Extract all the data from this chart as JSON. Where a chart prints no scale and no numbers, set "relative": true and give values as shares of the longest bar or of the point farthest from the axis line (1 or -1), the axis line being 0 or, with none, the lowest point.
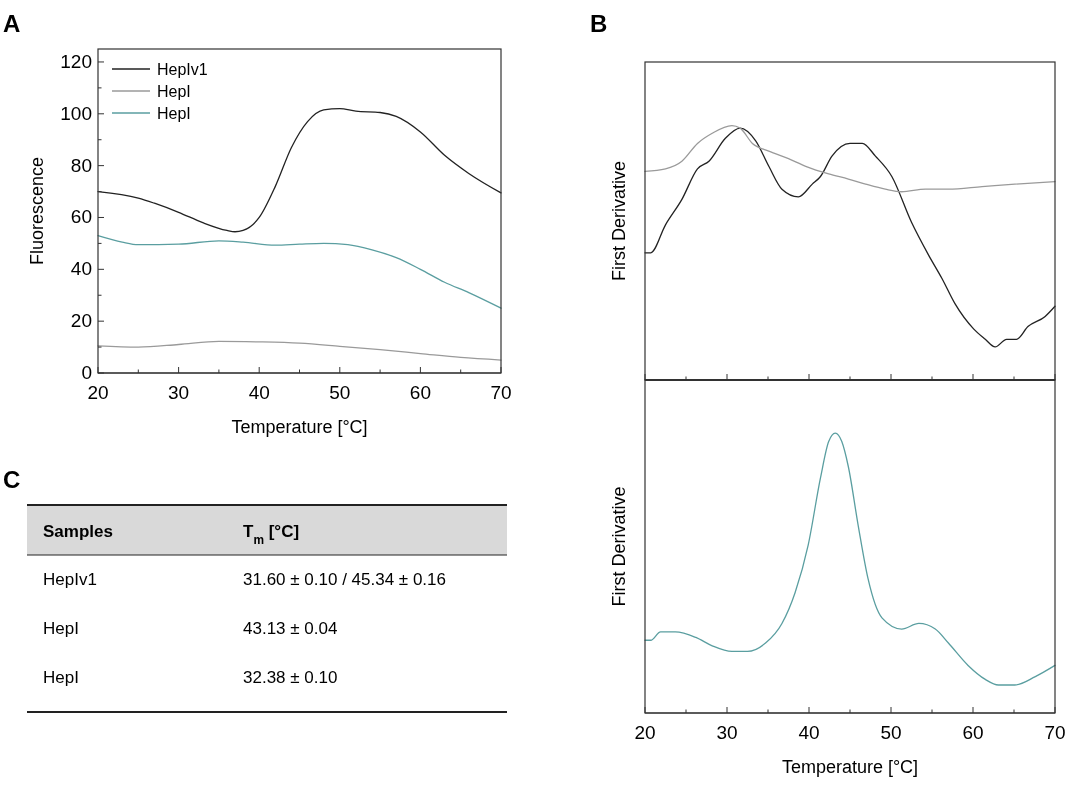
{
  "chart_data": [
    {
      "type": "line",
      "title": "A",
      "xlabel": "Temperature [°C]",
      "ylabel": "Fluorescence",
      "xlim": [
        20,
        70
      ],
      "ylim": [
        0,
        125
      ],
      "xticks": [
        20,
        30,
        40,
        50,
        60,
        70
      ],
      "yticks": [
        0,
        20,
        40,
        60,
        80,
        100,
        120
      ],
      "legend": "top left",
      "series": [
        {
          "name": "HepIv1",
          "color": "#222222",
          "x": [
            20,
            25,
            27,
            30,
            33,
            36,
            37,
            38,
            40,
            42,
            44,
            46,
            48,
            50,
            52,
            55,
            57,
            60,
            63,
            66,
            70
          ],
          "values": [
            70,
            67.5,
            65.5,
            62,
            58,
            55,
            54.5,
            55,
            60,
            72,
            87,
            97,
            101.5,
            102,
            101,
            100.5,
            99,
            93,
            84,
            77,
            69.5
          ]
        },
        {
          "name": "HepI",
          "color": "#9a9a9a",
          "x": [
            20,
            25,
            30,
            35,
            40,
            45,
            50,
            55,
            60,
            65,
            70
          ],
          "values": [
            10.5,
            10,
            11,
            12.2,
            12,
            11.5,
            10.3,
            9,
            7.5,
            6,
            5
          ]
        },
        {
          "name": "HepI",
          "color": "#5a9ea0",
          "x": [
            20,
            23,
            25,
            30,
            35,
            38,
            42,
            45,
            48,
            51,
            54,
            57,
            60,
            63,
            66,
            70
          ],
          "values": [
            53,
            50.5,
            49.5,
            49.7,
            51,
            50.5,
            49.3,
            49.7,
            50,
            49.5,
            47.5,
            44.5,
            40,
            35,
            31,
            25
          ]
        }
      ]
    },
    {
      "type": "line",
      "title": "B",
      "ylabel": "First Derivative",
      "relative": true,
      "xlim": [
        20,
        70
      ],
      "xticks": [
        20,
        30,
        40,
        50,
        60,
        70
      ],
      "tick_labels": false,
      "series": [
        {
          "color": "#222222",
          "x": [
            20,
            20.7,
            22.5,
            24.5,
            26.4,
            27.8,
            29.8,
            31.6,
            33.5,
            35.1,
            36.7,
            38.7,
            40.4,
            41.4,
            42.8,
            45,
            46.5,
            48.1,
            50.1,
            52.5,
            54.6,
            56.2,
            57.8,
            60.1,
            61.5,
            62.7,
            64.1,
            65.3,
            66.7,
            68.8,
            70
          ],
          "values": [
            0.5,
            0.5,
            0.61,
            0.71,
            0.83,
            0.86,
            0.95,
            0.99,
            0.94,
            0.84,
            0.75,
            0.72,
            0.77,
            0.8,
            0.88,
            0.93,
            0.93,
            0.88,
            0.8,
            0.62,
            0.49,
            0.4,
            0.3,
            0.2,
            0.16,
            0.13,
            0.16,
            0.16,
            0.21,
            0.25,
            0.29
          ]
        },
        {
          "color": "#9a9a9a",
          "x": [
            20,
            22.5,
            24.5,
            26.4,
            28.2,
            30.6,
            31.6,
            33.1,
            35.1,
            37.5,
            39.6,
            42.4,
            44.8,
            46.9,
            49.3,
            51.3,
            54.2,
            57,
            61.1,
            65.1,
            70
          ],
          "values": [
            0.82,
            0.83,
            0.86,
            0.93,
            0.97,
            1,
            0.99,
            0.93,
            0.9,
            0.87,
            0.84,
            0.81,
            0.79,
            0.77,
            0.75,
            0.74,
            0.75,
            0.75,
            0.76,
            0.77,
            0.78
          ]
        }
      ]
    },
    {
      "type": "line",
      "xlabel": "Temperature [°C]",
      "ylabel": "First Derivative",
      "relative": true,
      "xlim": [
        20,
        70
      ],
      "xticks": [
        20,
        30,
        40,
        50,
        60,
        70
      ],
      "tick_labels": "x",
      "series": [
        {
          "color": "#5a9ea0",
          "x": [
            20,
            20.7,
            21.9,
            23.7,
            26.2,
            28.2,
            30.6,
            32.5,
            34.7,
            36.7,
            38.3,
            39.9,
            41.4,
            42.4,
            43.2,
            44,
            44.8,
            46,
            47.2,
            48.9,
            51.3,
            53.4,
            55.4,
            57,
            59.4,
            61.5,
            63.1,
            65.1,
            67.6,
            70
          ],
          "values": [
            0.26,
            0.26,
            0.29,
            0.29,
            0.27,
            0.24,
            0.22,
            0.22,
            0.25,
            0.32,
            0.43,
            0.6,
            0.84,
            0.97,
            1,
            0.97,
            0.88,
            0.67,
            0.48,
            0.34,
            0.3,
            0.32,
            0.3,
            0.25,
            0.17,
            0.12,
            0.1,
            0.1,
            0.13,
            0.17
          ]
        }
      ]
    },
    {
      "type": "other",
      "title": "C",
      "annotations": [
        "Samples",
        "T$_{m}$ [°C]",
        "HepIv1",
        "31.60 ± 0.10 / 45.34 ± 0.16",
        "HepI",
        "43.13 ± 0.04",
        "HepI",
        "32.38 ± 0.10"
      ]
    }
  ]
}
